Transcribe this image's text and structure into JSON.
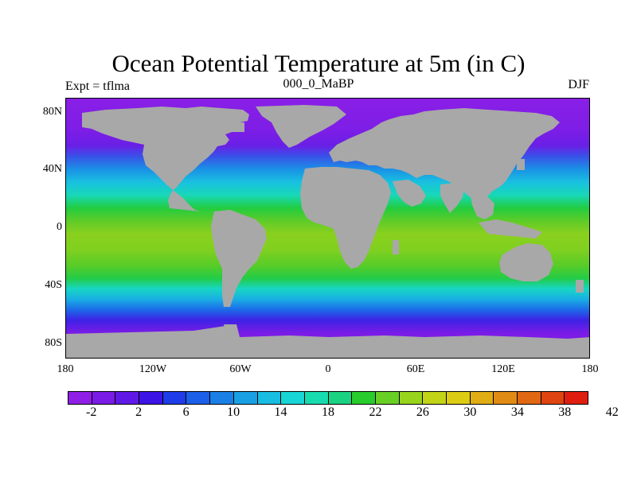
{
  "title": "Ocean Potential Temperature at 5m (in C)",
  "left_label": "Expt = tflma",
  "center_label": "000_0_MaBP",
  "right_label": "DJF",
  "map": {
    "projection": "cylindrical equidistant",
    "lon_range": [
      -180,
      180
    ],
    "lat_range": [
      -90,
      90
    ],
    "land_color": "#a8a8a8",
    "y_ticks": [
      "80N",
      "40N",
      "0",
      "40S",
      "80S"
    ],
    "x_ticks": [
      "180",
      "120W",
      "60W",
      "0",
      "60E",
      "120E",
      "180"
    ]
  },
  "colorbar": {
    "colors": [
      "#8f1fe6",
      "#7a1ce6",
      "#6018e6",
      "#3d14e6",
      "#1e3ce8",
      "#1c5fe8",
      "#1a80e6",
      "#19a0e4",
      "#19bde2",
      "#18d6d6",
      "#18dcb0",
      "#1ad282",
      "#28cc2c",
      "#68d024",
      "#98d41c",
      "#c2d418",
      "#dccc14",
      "#e0ae14",
      "#e08c14",
      "#e06812",
      "#e04410",
      "#e01e10"
    ],
    "labels": [
      "-2",
      "2",
      "6",
      "10",
      "14",
      "18",
      "22",
      "26",
      "30",
      "34",
      "38",
      "42"
    ]
  }
}
